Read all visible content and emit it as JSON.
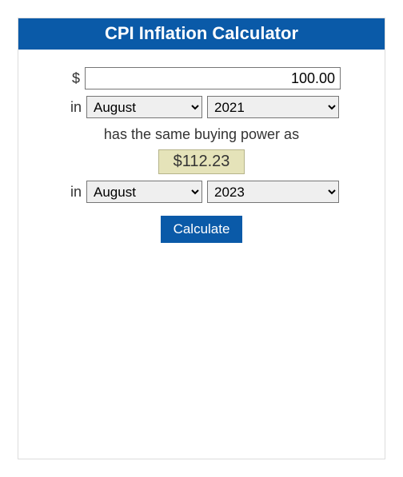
{
  "title": "CPI Inflation Calculator",
  "currency_symbol": "$",
  "amount_value": "100.00",
  "in_label": "in",
  "from": {
    "month": "August",
    "year": "2021"
  },
  "mid_text": "has the same buying power as",
  "result": "$112.23",
  "to": {
    "month": "August",
    "year": "2023"
  },
  "calculate_label": "Calculate",
  "colors": {
    "header_bg": "#0a5aa8",
    "header_text": "#ffffff",
    "card_border": "#dcdcdc",
    "result_bg": "#e5e3b9",
    "result_border": "#b6b48a",
    "button_bg": "#0a5aa8",
    "button_text": "#ffffff"
  }
}
